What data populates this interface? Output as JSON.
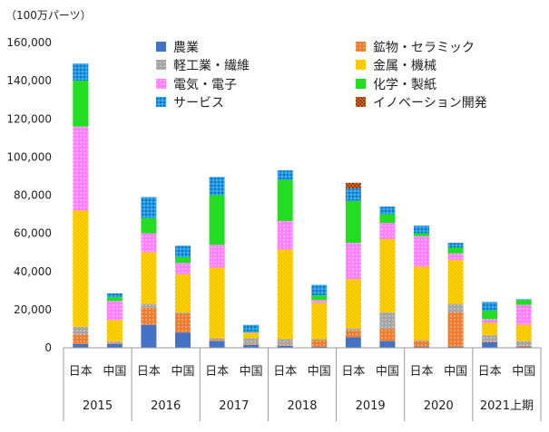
{
  "chart_data": {
    "type": "bar",
    "stacked": true,
    "unit_label": "（100万パーツ）",
    "ylim": [
      0,
      160000
    ],
    "yticks": [
      0,
      20000,
      40000,
      60000,
      80000,
      100000,
      120000,
      140000,
      160000
    ],
    "ytick_labels": [
      "0",
      "20,000",
      "40,000",
      "60,000",
      "80,000",
      "100,000",
      "120,000",
      "140,000",
      "160,000"
    ],
    "legend_position": "top-right",
    "categories": [
      {
        "country": "日本",
        "year": "2015"
      },
      {
        "country": "中国",
        "year": "2015"
      },
      {
        "country": "日本",
        "year": "2016"
      },
      {
        "country": "中国",
        "year": "2016"
      },
      {
        "country": "日本",
        "year": "2017"
      },
      {
        "country": "中国",
        "year": "2017"
      },
      {
        "country": "日本",
        "year": "2018"
      },
      {
        "country": "中国",
        "year": "2018"
      },
      {
        "country": "日本",
        "year": "2019"
      },
      {
        "country": "中国",
        "year": "2019"
      },
      {
        "country": "日本",
        "year": "2020"
      },
      {
        "country": "中国",
        "year": "2020"
      },
      {
        "country": "日本",
        "year": "2021上期"
      },
      {
        "country": "中国",
        "year": "2021上期"
      }
    ],
    "years": [
      "2015",
      "2016",
      "2017",
      "2018",
      "2019",
      "2020",
      "2021上期"
    ],
    "series": [
      {
        "name": "農業",
        "color": "#4472C4",
        "pattern": "solid",
        "values": [
          2000,
          2000,
          12000,
          8000,
          3500,
          1500,
          1000,
          500,
          5500,
          3500,
          500,
          500,
          3000,
          500
        ]
      },
      {
        "name": "鉱物・セラミック",
        "color": "#ED7D31",
        "pattern": "dots",
        "values": [
          5000,
          500,
          9000,
          10000,
          500,
          500,
          500,
          3500,
          3500,
          6500,
          3000,
          18000,
          500,
          500
        ]
      },
      {
        "name": "軽工業・繊維",
        "color": "#A5A5A5",
        "pattern": "dots",
        "values": [
          4000,
          1000,
          2000,
          500,
          1000,
          3000,
          3000,
          500,
          1000,
          8500,
          500,
          4500,
          3000,
          2500
        ]
      },
      {
        "name": "金属・機械",
        "color": "#FFD700",
        "pattern": "diag",
        "values": [
          61000,
          11000,
          27000,
          20000,
          37000,
          2500,
          47000,
          19000,
          26000,
          38500,
          38500,
          23000,
          6500,
          8500
        ]
      },
      {
        "name": "電気・電子",
        "color": "#FF80FF",
        "pattern": "dots",
        "values": [
          44000,
          10000,
          10000,
          6000,
          12000,
          500,
          15000,
          1500,
          19000,
          8500,
          16000,
          3500,
          2000,
          10500
        ]
      },
      {
        "name": "化学・製紙",
        "color": "#22DD22",
        "pattern": "solid",
        "values": [
          24000,
          2000,
          8000,
          3000,
          26000,
          500,
          21500,
          2500,
          22000,
          4500,
          1500,
          3000,
          4500,
          2500
        ]
      },
      {
        "name": "サービス",
        "color": "#1E9BE6",
        "pattern": "dots",
        "values": [
          9000,
          2000,
          11000,
          6000,
          9500,
          3500,
          5000,
          5500,
          6500,
          4000,
          4000,
          2500,
          4500,
          500
        ]
      },
      {
        "name": "イノベーション開発",
        "color": "#C0504D",
        "pattern": "check",
        "values": [
          0,
          0,
          0,
          0,
          0,
          0,
          0,
          0,
          3000,
          0,
          0,
          0,
          0,
          0
        ]
      }
    ]
  }
}
